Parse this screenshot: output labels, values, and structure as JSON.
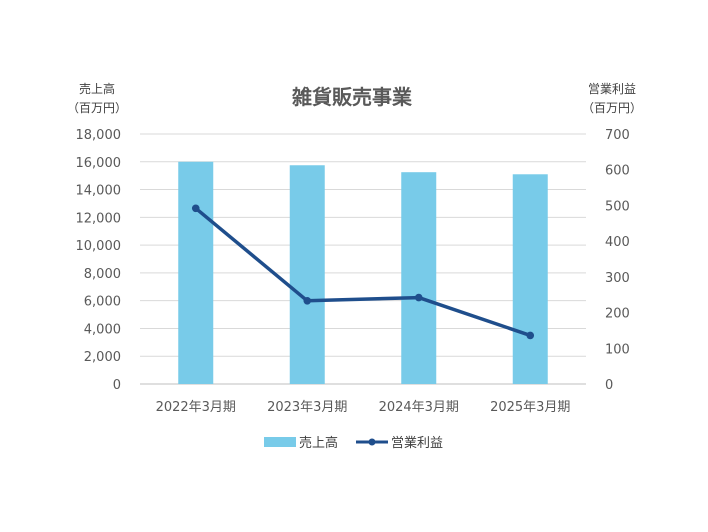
{
  "chart_data": {
    "type": "bar",
    "title": "雑貨販売事業",
    "categories": [
      "2022年3月期",
      "2023年3月期",
      "2024年3月期",
      "2025年3月期"
    ],
    "left_axis": {
      "label_line1": "売上高",
      "label_line2": "（百万円）",
      "ylim": [
        0,
        18000
      ],
      "step": 2000
    },
    "right_axis": {
      "label_line1": "営業利益",
      "label_line2": "（百万円）",
      "ylim": [
        0,
        700
      ],
      "step": 100
    },
    "series": [
      {
        "name": "売上高",
        "type": "bar",
        "axis": "left",
        "color": "#78CBE9",
        "values": [
          16000,
          15750,
          15250,
          15100
        ]
      },
      {
        "name": "営業利益",
        "type": "line",
        "axis": "right",
        "color": "#1F4E8C",
        "values": [
          492,
          233,
          242,
          136
        ]
      }
    ],
    "grid": true,
    "legend_position": "bottom"
  }
}
